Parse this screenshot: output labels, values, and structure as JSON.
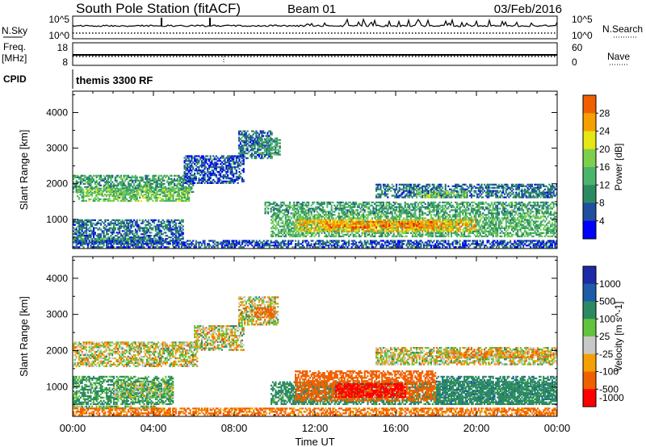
{
  "header": {
    "station": "South Pole Station (fitACF)",
    "beam": "Beam 01",
    "date": "03/Feb/2016",
    "cpid_value": "themis 3300 RF"
  },
  "strip_labels": {
    "nsky": "N.Sky",
    "nsky_ticks": [
      "10^5",
      "10^0"
    ],
    "nsearch": "N.Search",
    "freq_top": "Freq.",
    "freq_bottom": "[MHz]",
    "freq_ticks": [
      "18",
      "8"
    ],
    "nave": "Nave",
    "nave_ticks": [
      "60",
      "0"
    ],
    "cpid": "CPID"
  },
  "x_axis": {
    "label": "Time UT",
    "ticks": [
      "00:00",
      "04:00",
      "08:00",
      "12:00",
      "16:00",
      "20:00",
      "00:00"
    ]
  },
  "colors": {
    "power": [
      "#0000ff",
      "#1e4fa0",
      "#2c8a62",
      "#4cb56d",
      "#7ed04b",
      "#e6e614",
      "#f5a000",
      "#f06000",
      "#ff0000"
    ],
    "velocity": [
      "#1e2aa6",
      "#1e5ca8",
      "#2c8a62",
      "#62c43c",
      "#c8c8c8",
      "#f5a000",
      "#f06000",
      "#ff0000"
    ]
  },
  "chart_data": [
    {
      "type": "heatmap",
      "panel": "power",
      "ylabel": "Slant Range [km]",
      "xlabel": "Time UT",
      "xlim": [
        0,
        24
      ],
      "ylim": [
        180,
        4600
      ],
      "yticks": [
        1000,
        2000,
        3000,
        4000
      ],
      "colorbar_label": "Power [dB]",
      "colorbar_ticks": [
        "4",
        "8",
        "12",
        "16",
        "20",
        "24",
        "28"
      ],
      "colorbar_range": [
        0,
        32
      ],
      "bands": [
        {
          "t0": 0.0,
          "t1": 6.0,
          "r0": 1750,
          "r1": 2250,
          "value": 12
        },
        {
          "t0": 0.2,
          "t1": 5.8,
          "r0": 1500,
          "r1": 1900,
          "value": 16
        },
        {
          "t0": 0.0,
          "t1": 5.5,
          "r0": 300,
          "r1": 1000,
          "value": 8
        },
        {
          "t0": 0.0,
          "t1": 4.2,
          "r0": 380,
          "r1": 480,
          "value": 12
        },
        {
          "t0": 5.5,
          "t1": 8.5,
          "r0": 2000,
          "r1": 2800,
          "value": 6
        },
        {
          "t0": 8.2,
          "t1": 9.9,
          "r0": 2700,
          "r1": 3500,
          "value": 8
        },
        {
          "t0": 9.2,
          "t1": 10.3,
          "r0": 2800,
          "r1": 3300,
          "value": 12
        },
        {
          "t0": 9.8,
          "t1": 24.0,
          "r0": 500,
          "r1": 1150,
          "value": 14
        },
        {
          "t0": 11.0,
          "t1": 20.0,
          "r0": 650,
          "r1": 1000,
          "value": 24
        },
        {
          "t0": 12.5,
          "t1": 18.5,
          "r0": 750,
          "r1": 950,
          "value": 28
        },
        {
          "t0": 9.5,
          "t1": 24.0,
          "r0": 1150,
          "r1": 1500,
          "value": 12
        },
        {
          "t0": 15.0,
          "t1": 24.0,
          "r0": 1600,
          "r1": 2000,
          "value": 8
        },
        {
          "t0": 17.0,
          "t1": 19.5,
          "r0": 1600,
          "r1": 1800,
          "value": 16
        },
        {
          "t0": 0.0,
          "t1": 24.0,
          "r0": 200,
          "r1": 420,
          "value": 6
        }
      ]
    },
    {
      "type": "heatmap",
      "panel": "velocity",
      "ylabel": "Slant Range [km]",
      "xlabel": "Time UT",
      "xlim": [
        0,
        24
      ],
      "ylim": [
        180,
        4600
      ],
      "yticks": [
        1000,
        2000,
        3000,
        4000
      ],
      "colorbar_label": "Velocity [m s^-1]",
      "colorbar_ticks": [
        "1000",
        "500",
        "100",
        "25",
        "-25",
        "-100",
        "-500",
        "-1000"
      ],
      "bands": [
        {
          "t0": 0.0,
          "t1": 6.2,
          "r0": 1550,
          "r1": 2250,
          "value": 0
        },
        {
          "t0": 6.0,
          "t1": 8.5,
          "r0": 2000,
          "r1": 2700,
          "value": 0
        },
        {
          "t0": 8.2,
          "t1": 10.2,
          "r0": 2700,
          "r1": 3500,
          "value": 0
        },
        {
          "t0": 9.0,
          "t1": 10.0,
          "r0": 2900,
          "r1": 3200,
          "value": -200
        },
        {
          "t0": 0.0,
          "t1": 5.0,
          "r0": 500,
          "r1": 1300,
          "value": 150
        },
        {
          "t0": 2.0,
          "t1": 5.0,
          "r0": 700,
          "r1": 1100,
          "value": 60
        },
        {
          "t0": 0.0,
          "t1": 4.2,
          "r0": 380,
          "r1": 480,
          "value": 60
        },
        {
          "t0": 9.8,
          "t1": 24.0,
          "r0": 500,
          "r1": 1150,
          "value": 200
        },
        {
          "t0": 11.0,
          "t1": 18.0,
          "r0": 600,
          "r1": 1450,
          "value": -300
        },
        {
          "t0": 13.0,
          "t1": 16.5,
          "r0": 700,
          "r1": 1100,
          "value": -800
        },
        {
          "t0": 18.0,
          "t1": 24.0,
          "r0": 500,
          "r1": 1300,
          "value": 400
        },
        {
          "t0": 15.0,
          "t1": 24.0,
          "r0": 1600,
          "r1": 2100,
          "value": 0
        },
        {
          "t0": 18.0,
          "t1": 24.0,
          "r0": 1800,
          "r1": 2000,
          "value": -60
        },
        {
          "t0": 0.0,
          "t1": 24.0,
          "r0": 200,
          "r1": 420,
          "value": -150
        }
      ]
    }
  ]
}
